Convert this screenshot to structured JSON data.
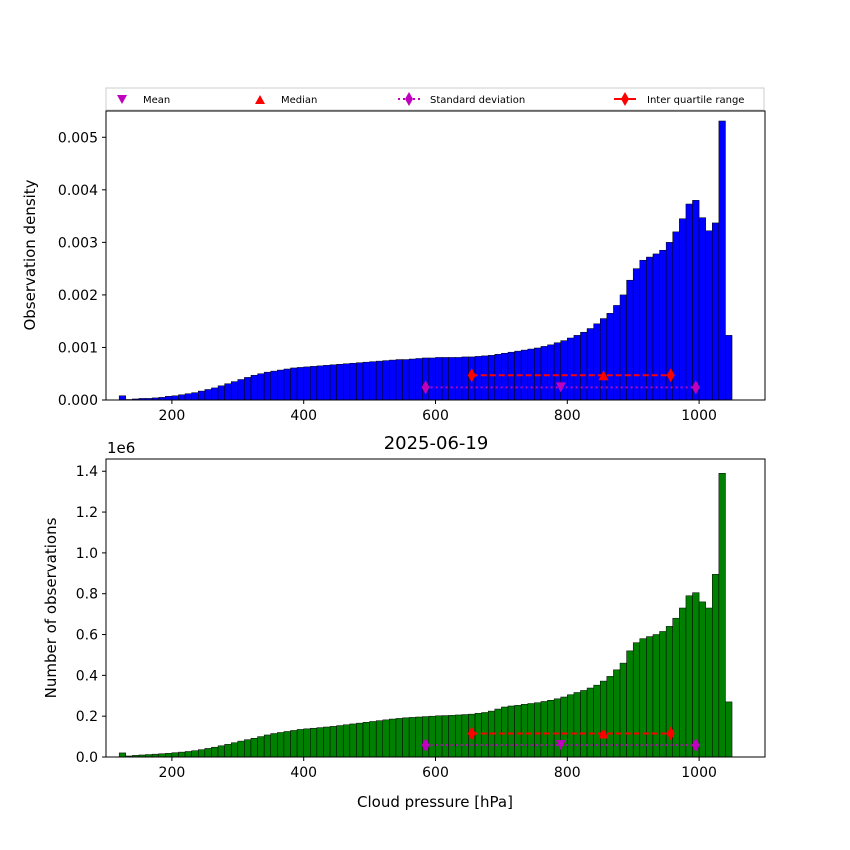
{
  "figure": {
    "title": "2025-06-19",
    "y2_offset_label": "1e6"
  },
  "legend": {
    "mean": "Mean",
    "median": "Median",
    "std": "Standard deviation",
    "iqr": "Inter quartile range"
  },
  "colors": {
    "density_bars": "#0000ff",
    "count_bars": "#008000",
    "mean_std": "#bf00bf",
    "median_iqr": "#ff0000",
    "bar_edge": "#000000"
  },
  "chart_data": [
    {
      "type": "bar",
      "name": "density",
      "ylabel": "Observation density",
      "xlabel": "",
      "xlim": [
        100,
        1100
      ],
      "ylim": [
        0,
        0.0055
      ],
      "xticks": [
        200,
        400,
        600,
        800,
        1000
      ],
      "yticks": [
        0.0,
        0.001,
        0.002,
        0.003,
        0.004,
        0.005
      ],
      "ytick_labels": [
        "0.000",
        "0.001",
        "0.002",
        "0.003",
        "0.004",
        "0.005"
      ],
      "bin_start": 125,
      "bin_width": 10,
      "values": [
        8e-05,
        1e-05,
        2e-05,
        3e-05,
        3e-05,
        4e-05,
        5e-05,
        7e-05,
        8e-05,
        0.0001,
        0.00012,
        0.00014,
        0.00017,
        0.0002,
        0.00023,
        0.00027,
        0.00031,
        0.00035,
        0.00039,
        0.00043,
        0.00047,
        0.0005,
        0.00053,
        0.00055,
        0.00057,
        0.00059,
        0.00061,
        0.00062,
        0.00063,
        0.00064,
        0.00065,
        0.00066,
        0.00067,
        0.00068,
        0.00069,
        0.0007,
        0.00071,
        0.00072,
        0.00073,
        0.00074,
        0.00075,
        0.00076,
        0.00077,
        0.00077,
        0.00078,
        0.00079,
        0.0008,
        0.0008,
        0.00081,
        0.00081,
        0.00081,
        0.00081,
        0.00082,
        0.00082,
        0.00083,
        0.00084,
        0.00085,
        0.00087,
        0.00089,
        0.00091,
        0.00093,
        0.00095,
        0.00097,
        0.00099,
        0.00102,
        0.00105,
        0.00109,
        0.00113,
        0.00118,
        0.00123,
        0.00129,
        0.00136,
        0.00145,
        0.00155,
        0.00165,
        0.0018,
        0.002,
        0.00228,
        0.0025,
        0.00266,
        0.00272,
        0.00278,
        0.00285,
        0.003,
        0.0032,
        0.00345,
        0.00373,
        0.0038,
        0.00347,
        0.00322,
        0.00337,
        0.00531,
        0.00123
      ],
      "markers": {
        "y": 0.00024,
        "y_iqr": 0.00047,
        "mean": 790,
        "median": 855,
        "std": [
          585,
          995
        ],
        "iqr": [
          655,
          957
        ]
      }
    },
    {
      "type": "bar",
      "name": "count",
      "ylabel": "Number of observations",
      "xlabel": "Cloud pressure [hPa]",
      "xlim": [
        100,
        1100
      ],
      "ylim": [
        0,
        1.46
      ],
      "y_scale_note": "1e6",
      "xticks": [
        200,
        400,
        600,
        800,
        1000
      ],
      "yticks": [
        0.0,
        0.2,
        0.4,
        0.6,
        0.8,
        1.0,
        1.2,
        1.4
      ],
      "ytick_labels": [
        "0.0",
        "0.2",
        "0.4",
        "0.6",
        "0.8",
        "1.0",
        "1.2",
        "1.4"
      ],
      "bin_start": 125,
      "bin_width": 10,
      "values": [
        0.02,
        0.005,
        0.008,
        0.01,
        0.012,
        0.014,
        0.016,
        0.018,
        0.021,
        0.024,
        0.027,
        0.031,
        0.036,
        0.042,
        0.048,
        0.055,
        0.062,
        0.07,
        0.078,
        0.085,
        0.092,
        0.1,
        0.108,
        0.115,
        0.12,
        0.125,
        0.13,
        0.135,
        0.138,
        0.141,
        0.144,
        0.147,
        0.15,
        0.154,
        0.158,
        0.162,
        0.166,
        0.17,
        0.174,
        0.178,
        0.182,
        0.186,
        0.189,
        0.192,
        0.194,
        0.196,
        0.198,
        0.2,
        0.202,
        0.203,
        0.204,
        0.206,
        0.208,
        0.21,
        0.214,
        0.218,
        0.225,
        0.235,
        0.245,
        0.25,
        0.253,
        0.258,
        0.262,
        0.266,
        0.272,
        0.278,
        0.285,
        0.294,
        0.305,
        0.316,
        0.326,
        0.338,
        0.352,
        0.372,
        0.395,
        0.427,
        0.46,
        0.52,
        0.56,
        0.58,
        0.59,
        0.6,
        0.615,
        0.64,
        0.68,
        0.73,
        0.79,
        0.805,
        0.76,
        0.73,
        0.895,
        1.39,
        0.27
      ],
      "markers": {
        "y": 0.058,
        "y_iqr": 0.115,
        "mean": 790,
        "median": 855,
        "std": [
          585,
          995
        ],
        "iqr": [
          655,
          957
        ]
      }
    }
  ]
}
